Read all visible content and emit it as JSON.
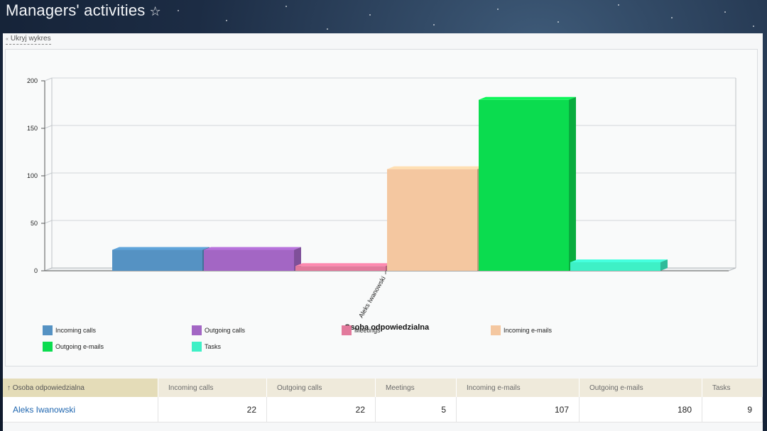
{
  "header": {
    "title": "Managers' activities",
    "favorite_icon": "star-outline-icon"
  },
  "toggle": {
    "label": "Ukryj wykres"
  },
  "chart_data": {
    "type": "bar",
    "categories": [
      "Aleks Iwanowski"
    ],
    "series": [
      {
        "name": "Incoming calls",
        "values": [
          22
        ],
        "color": "#5592c3"
      },
      {
        "name": "Outgoing calls",
        "values": [
          22
        ],
        "color": "#a366c4"
      },
      {
        "name": "Meetings",
        "values": [
          5
        ],
        "color": "#e27a9c"
      },
      {
        "name": "Incoming e-mails",
        "values": [
          107
        ],
        "color": "#f4c7a0"
      },
      {
        "name": "Outgoing e-mails",
        "values": [
          180
        ],
        "color": "#0bdc4f"
      },
      {
        "name": "Tasks",
        "values": [
          9
        ],
        "color": "#3ef0c6"
      }
    ],
    "xlabel": "Osoba odpowiedzialna",
    "ylabel": "",
    "ylim": [
      0,
      200
    ],
    "yticks": [
      0,
      50,
      100,
      150,
      200
    ],
    "grid": true,
    "legend_position": "bottom"
  },
  "table": {
    "sort_arrow": "↑",
    "columns": [
      "Osoba odpowiedzialna",
      "Incoming calls",
      "Outgoing calls",
      "Meetings",
      "Incoming e-mails",
      "Outgoing e-mails",
      "Tasks"
    ],
    "rows": [
      [
        "Aleks Iwanowski",
        "22",
        "22",
        "5",
        "107",
        "180",
        "9"
      ]
    ]
  }
}
